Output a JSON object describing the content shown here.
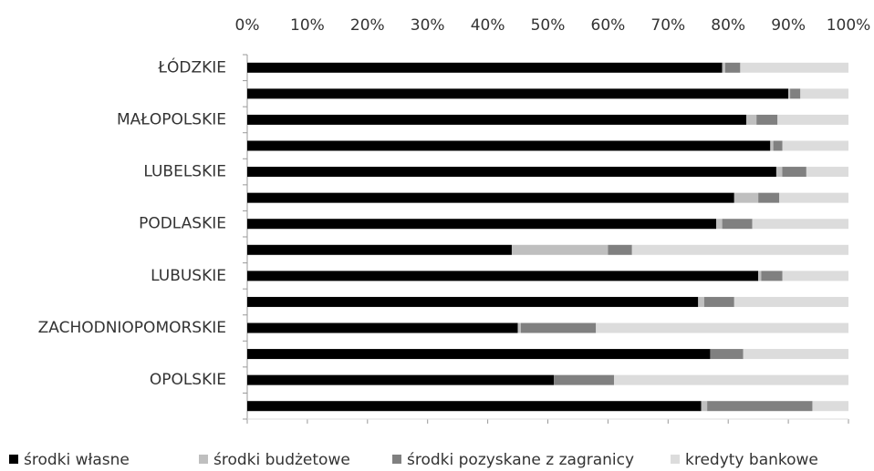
{
  "chart_data": {
    "type": "stacked-bar-horizontal",
    "categories": [
      "ŁÓDZKIE",
      null,
      "MAŁOPOLSKIE",
      null,
      "LUBELSKIE",
      null,
      "PODLASKIE",
      null,
      "LUBUSKIE",
      null,
      "ZACHODNIOPOMORSKIE",
      null,
      "OPOLSKIE",
      null
    ],
    "series": [
      {
        "name": "środki własne",
        "color": "#000000",
        "values": [
          79,
          90,
          83,
          87,
          88,
          81,
          78,
          44,
          85,
          75,
          45,
          77,
          51,
          75.5
        ]
      },
      {
        "name": "środki budżetowe",
        "color": "#bfbfbf",
        "values": [
          0.5,
          0.3,
          1.7,
          0.5,
          1,
          4,
          1,
          16,
          0.5,
          1,
          0.5,
          0,
          0,
          1
        ]
      },
      {
        "name": "środki pozyskane z zagranicy",
        "color": "#808080",
        "values": [
          2.5,
          1.7,
          3.5,
          1.5,
          4,
          3.5,
          5,
          4,
          3.5,
          5,
          12.5,
          5.5,
          10,
          17.5
        ]
      },
      {
        "name": "kredyty bankowe",
        "color": "#dcdcdc",
        "values": [
          18,
          8,
          11.8,
          11,
          7,
          11.5,
          16,
          36,
          11,
          19,
          42,
          17.5,
          39,
          6
        ]
      }
    ],
    "xlim": [
      0,
      100
    ],
    "xticks": [
      {
        "value": 0,
        "label": "0%"
      },
      {
        "value": 10,
        "label": "10%"
      },
      {
        "value": 20,
        "label": "20%"
      },
      {
        "value": 30,
        "label": "30%"
      },
      {
        "value": 40,
        "label": "40%"
      },
      {
        "value": 50,
        "label": "50%"
      },
      {
        "value": 60,
        "label": "60%"
      },
      {
        "value": 70,
        "label": "70%"
      },
      {
        "value": 80,
        "label": "80%"
      },
      {
        "value": 90,
        "label": "90%"
      },
      {
        "value": 100,
        "label": "100%"
      }
    ],
    "legend": "bottom"
  }
}
